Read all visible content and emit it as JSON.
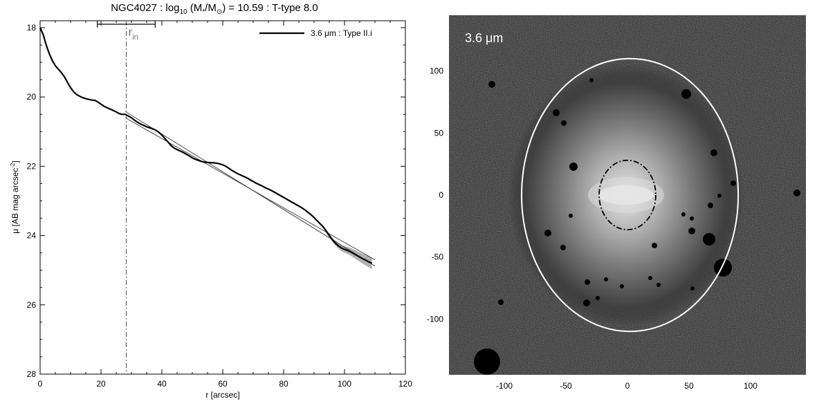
{
  "figure": {
    "title": {
      "prefix": "NGC4027 : log",
      "log_sub": "10",
      "paren_open": " (M",
      "star_sub": "*",
      "slash": "/M",
      "sun_sub": "⊙",
      "suffix": ") = 10.59 : T-type 8.0"
    }
  },
  "chart_data": [
    {
      "type": "line",
      "title": "NGC4027 : log10 (M*/M⊙) = 10.59 : T-type 8.0",
      "xlabel": "r [arcsec]",
      "ylabel_main": "μ [AB mag arcsec",
      "ylabel_sup": "-2",
      "ylabel_end": "]",
      "xlim": [
        0,
        120
      ],
      "ylim": [
        28,
        17.8
      ],
      "y_inverted": true,
      "xticks": [
        0,
        20,
        40,
        60,
        80,
        100,
        120
      ],
      "yticks": [
        18,
        20,
        22,
        24,
        26,
        28
      ],
      "legend": {
        "position": "top-right",
        "label": "3.6 μm : Type II.i"
      },
      "series": [
        {
          "name": "3.6 μm : Type II.i",
          "color": "#000000",
          "x": [
            0,
            1,
            2,
            3,
            4,
            5,
            6,
            7,
            8,
            9,
            10,
            11,
            12,
            13,
            14,
            15,
            16,
            17,
            18,
            19,
            20,
            21,
            22,
            23,
            24,
            25,
            26,
            27,
            28,
            29,
            30,
            31,
            32,
            33,
            34,
            35,
            36,
            37,
            38,
            39,
            40,
            41,
            42,
            43,
            44,
            45,
            46,
            47,
            48,
            49,
            50,
            51,
            52,
            53,
            54,
            55,
            56,
            57,
            58,
            59,
            60,
            61,
            62,
            63,
            64,
            65,
            66,
            67,
            68,
            69,
            70,
            71,
            72,
            73,
            74,
            75,
            76,
            77,
            78,
            79,
            80,
            81,
            82,
            83,
            84,
            85,
            86,
            87,
            88,
            89,
            90,
            91,
            92,
            93,
            94,
            95,
            96,
            97,
            98,
            99,
            100,
            101,
            102,
            103,
            104,
            105,
            106,
            107,
            108,
            109
          ],
          "y": [
            18.0,
            18.2,
            18.5,
            18.75,
            18.95,
            19.1,
            19.2,
            19.3,
            19.42,
            19.58,
            19.73,
            19.85,
            19.93,
            19.98,
            20.02,
            20.05,
            20.07,
            20.09,
            20.1,
            20.15,
            20.21,
            20.27,
            20.31,
            20.35,
            20.39,
            20.43,
            20.48,
            20.5,
            20.5,
            20.55,
            20.6,
            20.67,
            20.73,
            20.78,
            20.82,
            20.86,
            20.89,
            20.92,
            20.96,
            21.02,
            21.1,
            21.2,
            21.3,
            21.4,
            21.47,
            21.52,
            21.56,
            21.6,
            21.65,
            21.7,
            21.76,
            21.8,
            21.83,
            21.86,
            21.88,
            21.89,
            21.9,
            21.9,
            21.91,
            21.93,
            21.96,
            22.0,
            22.06,
            22.12,
            22.17,
            22.22,
            22.26,
            22.3,
            22.34,
            22.39,
            22.44,
            22.49,
            22.53,
            22.57,
            22.62,
            22.66,
            22.7,
            22.75,
            22.8,
            22.85,
            22.9,
            22.95,
            23.0,
            23.05,
            23.1,
            23.15,
            23.2,
            23.26,
            23.33,
            23.4,
            23.48,
            23.57,
            23.66,
            23.75,
            23.87,
            24.0,
            24.12,
            24.22,
            24.3,
            24.36,
            24.4,
            24.43,
            24.47,
            24.52,
            24.57,
            24.62,
            24.67,
            24.71,
            24.76,
            24.8
          ]
        }
      ],
      "fit_line": {
        "x": [
          28,
          110
        ],
        "y": [
          20.6,
          24.7
        ]
      },
      "fit_line_upper": {
        "x": [
          28,
          110
        ],
        "y": [
          20.42,
          24.88
        ]
      },
      "uncertainty_band": {
        "x_range": [
          92,
          110
        ],
        "color": "#b0b0b0"
      },
      "r_in": {
        "label": "r",
        "label_sub": "in",
        "x": 28.3,
        "bracket": [
          18.8,
          37.8
        ]
      }
    },
    {
      "type": "image",
      "label": "3.6 μm",
      "xlim": [
        -145,
        145
      ],
      "ylim": [
        -145,
        145
      ],
      "xticks": [
        -100,
        -50,
        0,
        50,
        100
      ],
      "yticks": [
        -100,
        -50,
        0,
        50,
        100
      ],
      "ellipse_outer": {
        "cx": 2,
        "cy": 0,
        "rx": 88,
        "ry": 110,
        "color": "#ffffff"
      },
      "ellipse_inner": {
        "cx": 0,
        "cy": 0,
        "rx": 23,
        "ry": 28,
        "color": "#000000",
        "style": "dash-dot"
      }
    }
  ]
}
